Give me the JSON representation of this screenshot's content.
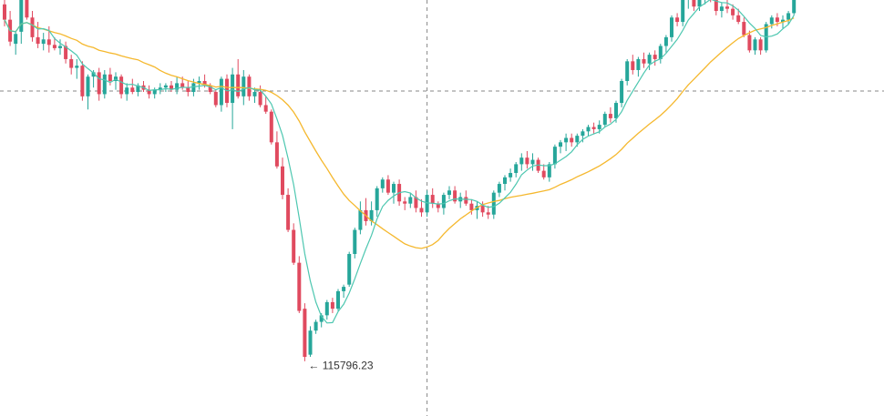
{
  "chart_data": {
    "type": "candlestick",
    "title": "",
    "xlabel": "",
    "ylabel": "",
    "grid": false,
    "ylim": [
      115300,
      119100
    ],
    "colors": {
      "up": "#26a69a",
      "down": "#e04a5f",
      "ma_fast": "#4dc7b0",
      "ma_slow": "#f5b82e",
      "crosshair": "#555555",
      "annotation": "#333333"
    },
    "crosshair": {
      "y_value": 118268,
      "bar_index": 76
    },
    "low_marker": {
      "label": "115796.23",
      "value": 115796.23,
      "arrow": "←"
    },
    "candles": [
      [
        119060,
        119160,
        118860,
        118920
      ],
      [
        118920,
        119000,
        118680,
        118720
      ],
      [
        118700,
        118820,
        118600,
        118790
      ],
      [
        118810,
        119140,
        118700,
        119100
      ],
      [
        119120,
        119150,
        118920,
        118940
      ],
      [
        118940,
        119000,
        118720,
        118760
      ],
      [
        118760,
        118900,
        118660,
        118700
      ],
      [
        118700,
        118800,
        118640,
        118740
      ],
      [
        118740,
        118860,
        118620,
        118690
      ],
      [
        118690,
        118760,
        118640,
        118660
      ],
      [
        118660,
        118740,
        118600,
        118680
      ],
      [
        118680,
        118720,
        118520,
        118560
      ],
      [
        118560,
        118600,
        118420,
        118480
      ],
      [
        118480,
        118560,
        118380,
        118500
      ],
      [
        118500,
        118540,
        118180,
        118220
      ],
      [
        118220,
        118420,
        118100,
        118400
      ],
      [
        118400,
        118460,
        118300,
        118440
      ],
      [
        118440,
        118480,
        118180,
        118240
      ],
      [
        118240,
        118460,
        118200,
        118420
      ],
      [
        118420,
        118480,
        118320,
        118360
      ],
      [
        118360,
        118440,
        118280,
        118400
      ],
      [
        118400,
        118420,
        118200,
        118240
      ],
      [
        118240,
        118340,
        118180,
        118300
      ],
      [
        118300,
        118380,
        118240,
        118260
      ],
      [
        118260,
        118340,
        118220,
        118320
      ],
      [
        118320,
        118360,
        118260,
        118280
      ],
      [
        118280,
        118320,
        118200,
        118240
      ],
      [
        118240,
        118300,
        118200,
        118280
      ],
      [
        118280,
        118340,
        118240,
        118300
      ],
      [
        118300,
        118340,
        118260,
        118320
      ],
      [
        118320,
        118360,
        118260,
        118280
      ],
      [
        118280,
        118400,
        118240,
        118340
      ],
      [
        118340,
        118400,
        118280,
        118300
      ],
      [
        118300,
        118360,
        118220,
        118260
      ],
      [
        118260,
        118380,
        118220,
        118340
      ],
      [
        118340,
        118400,
        118280,
        118360
      ],
      [
        118360,
        118420,
        118300,
        118320
      ],
      [
        118320,
        118340,
        118240,
        118260
      ],
      [
        118260,
        118280,
        118120,
        118140
      ],
      [
        118140,
        118400,
        118080,
        118380
      ],
      [
        118380,
        118420,
        118120,
        118160
      ],
      [
        118160,
        118480,
        117920,
        118420
      ],
      [
        118420,
        118560,
        118200,
        118220
      ],
      [
        118220,
        118460,
        118140,
        118400
      ],
      [
        118400,
        118420,
        118180,
        118220
      ],
      [
        118220,
        118300,
        118160,
        118260
      ],
      [
        118260,
        118320,
        118120,
        118140
      ],
      [
        118140,
        118220,
        118060,
        118080
      ],
      [
        118080,
        118100,
        117780,
        117800
      ],
      [
        117800,
        117900,
        117560,
        117580
      ],
      [
        117580,
        117660,
        117280,
        117320
      ],
      [
        117320,
        117380,
        116980,
        117000
      ],
      [
        117000,
        117060,
        116680,
        116700
      ],
      [
        116700,
        116760,
        116240,
        116260
      ],
      [
        116280,
        116330,
        115800,
        115840
      ],
      [
        115860,
        116120,
        115840,
        116080
      ],
      [
        116080,
        116180,
        116050,
        116160
      ],
      [
        116160,
        116240,
        116110,
        116220
      ],
      [
        116220,
        116360,
        116180,
        116340
      ],
      [
        116340,
        116380,
        116240,
        116280
      ],
      [
        116280,
        116460,
        116260,
        116440
      ],
      [
        116440,
        116500,
        116380,
        116480
      ],
      [
        116500,
        116800,
        116480,
        116780
      ],
      [
        116780,
        117020,
        116740,
        117000
      ],
      [
        117000,
        117260,
        116960,
        117180
      ],
      [
        117180,
        117290,
        117040,
        117080
      ],
      [
        117080,
        117260,
        117040,
        117180
      ],
      [
        117180,
        117400,
        117120,
        117380
      ],
      [
        117380,
        117480,
        117340,
        117460
      ],
      [
        117460,
        117500,
        117320,
        117340
      ],
      [
        117340,
        117440,
        117240,
        117420
      ],
      [
        117420,
        117460,
        117220,
        117260
      ],
      [
        117260,
        117300,
        117180,
        117240
      ],
      [
        117240,
        117340,
        117200,
        117300
      ],
      [
        117300,
        117360,
        117160,
        117200
      ],
      [
        117200,
        117280,
        117120,
        117160
      ],
      [
        117160,
        117360,
        117120,
        117320
      ],
      [
        117320,
        117380,
        117200,
        117240
      ],
      [
        117240,
        117260,
        117160,
        117200
      ],
      [
        117200,
        117340,
        117140,
        117320
      ],
      [
        117320,
        117400,
        117280,
        117360
      ],
      [
        117360,
        117400,
        117240,
        117260
      ],
      [
        117260,
        117340,
        117200,
        117300
      ],
      [
        117300,
        117360,
        117220,
        117240
      ],
      [
        117240,
        117280,
        117140,
        117180
      ],
      [
        117180,
        117260,
        117100,
        117220
      ],
      [
        117220,
        117260,
        117120,
        117160
      ],
      [
        117160,
        117220,
        117100,
        117140
      ],
      [
        117140,
        117360,
        117100,
        117340
      ],
      [
        117340,
        117440,
        117300,
        117420
      ],
      [
        117420,
        117500,
        117360,
        117480
      ],
      [
        117480,
        117560,
        117440,
        117520
      ],
      [
        117520,
        117620,
        117480,
        117600
      ],
      [
        117600,
        117700,
        117540,
        117660
      ],
      [
        117660,
        117720,
        117560,
        117600
      ],
      [
        117600,
        117700,
        117540,
        117640
      ],
      [
        117640,
        117660,
        117520,
        117540
      ],
      [
        117540,
        117600,
        117460,
        117480
      ],
      [
        117480,
        117620,
        117440,
        117600
      ],
      [
        117600,
        117780,
        117560,
        117760
      ],
      [
        117760,
        117820,
        117700,
        117800
      ],
      [
        117800,
        117880,
        117720,
        117840
      ],
      [
        117840,
        117880,
        117760,
        117800
      ],
      [
        117800,
        117880,
        117760,
        117860
      ],
      [
        117860,
        117920,
        117800,
        117900
      ],
      [
        117900,
        117960,
        117860,
        117940
      ],
      [
        117940,
        117980,
        117880,
        117920
      ],
      [
        117920,
        118000,
        117880,
        117960
      ],
      [
        117960,
        118080,
        117940,
        118060
      ],
      [
        118060,
        118120,
        117980,
        118020
      ],
      [
        118020,
        118180,
        117980,
        118160
      ],
      [
        118160,
        118380,
        118120,
        118360
      ],
      [
        118360,
        118560,
        118320,
        118540
      ],
      [
        118540,
        118600,
        118420,
        118460
      ],
      [
        118460,
        118580,
        118400,
        118560
      ],
      [
        118560,
        118620,
        118480,
        118520
      ],
      [
        118520,
        118620,
        118460,
        118600
      ],
      [
        118600,
        118640,
        118500,
        118560
      ],
      [
        118560,
        118700,
        118520,
        118680
      ],
      [
        118680,
        118780,
        118620,
        118760
      ],
      [
        118760,
        118960,
        118720,
        118940
      ],
      [
        118940,
        118980,
        118860,
        118900
      ],
      [
        118900,
        119140,
        118860,
        119100
      ],
      [
        119100,
        119160,
        119020,
        119120
      ],
      [
        119120,
        119160,
        119000,
        119040
      ],
      [
        119040,
        119130,
        119000,
        119120
      ],
      [
        119120,
        119160,
        119060,
        119140
      ],
      [
        119140,
        119160,
        119080,
        119120
      ],
      [
        119120,
        119150,
        118960,
        119000
      ],
      [
        119000,
        119080,
        118940,
        119040
      ],
      [
        119040,
        119100,
        118980,
        119020
      ],
      [
        119020,
        119060,
        118920,
        118960
      ],
      [
        118960,
        119020,
        118880,
        118900
      ],
      [
        118900,
        118940,
        118760,
        118780
      ],
      [
        118780,
        118820,
        118620,
        118640
      ],
      [
        118640,
        118760,
        118600,
        118740
      ],
      [
        118740,
        118760,
        118600,
        118640
      ],
      [
        118640,
        118900,
        118620,
        118880
      ],
      [
        118880,
        118960,
        118840,
        118940
      ],
      [
        118940,
        118980,
        118860,
        118900
      ],
      [
        118900,
        118960,
        118840,
        118920
      ],
      [
        118920,
        119000,
        118880,
        118980
      ],
      [
        118980,
        119150,
        118960,
        119140
      ]
    ]
  }
}
